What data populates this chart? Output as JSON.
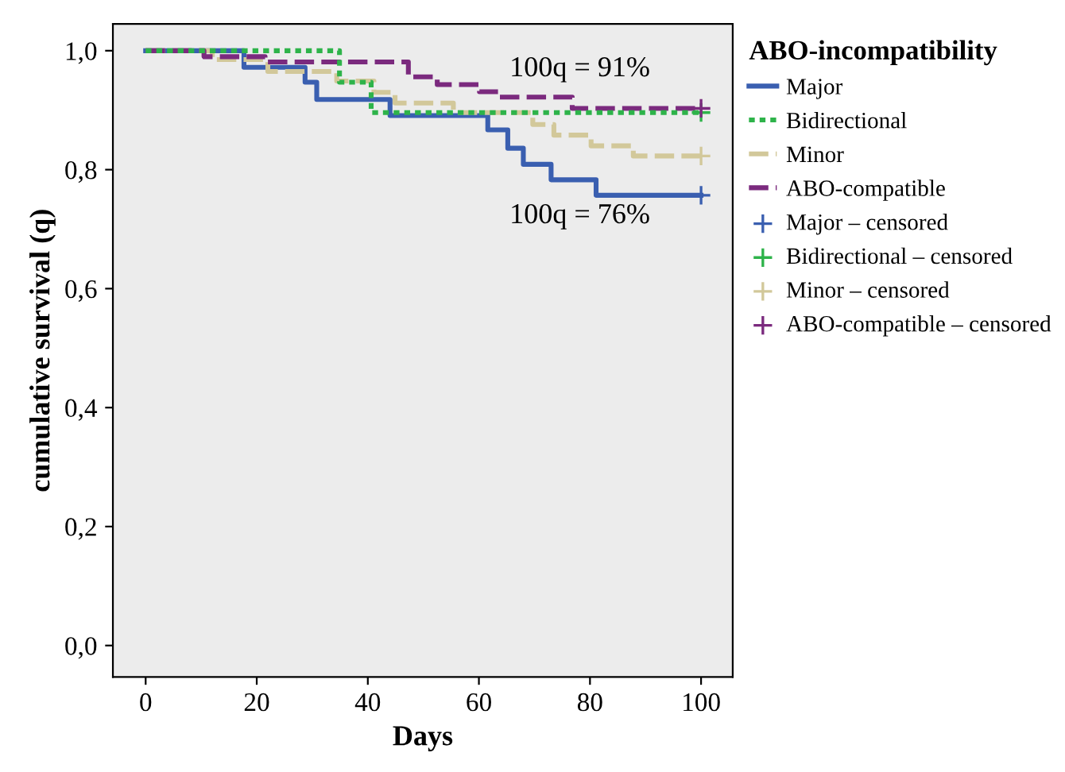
{
  "chart_data": {
    "type": "step",
    "xlabel": "Days",
    "ylabel": "cumulative survival (q)",
    "legend_title": "ABO-incompatibility",
    "xlim": [
      -5.9,
      105.7
    ],
    "ylim": [
      -0.053,
      1.045
    ],
    "xticks": [
      0,
      20,
      40,
      60,
      80,
      100
    ],
    "yticks": [
      {
        "value": 0,
        "label": "0,0"
      },
      {
        "value": 0.2,
        "label": "0,2"
      },
      {
        "value": 0.4,
        "label": "0,4"
      },
      {
        "value": 0.6,
        "label": "0,6"
      },
      {
        "value": 0.8,
        "label": "0,8"
      },
      {
        "value": 1.0,
        "label": "1,0"
      }
    ],
    "grid": false,
    "legend": "right",
    "annotations": [
      "100q = 91%",
      "100q = 76%"
    ],
    "series": [
      {
        "name": "Major",
        "color": "#3a5fb0",
        "line_style": "solid",
        "x": [
          0,
          17.7,
          28.7,
          30.8,
          44.0,
          61.6,
          65.2,
          68.0,
          73.0,
          81.1,
          100
        ],
        "values": [
          1.0,
          0.972,
          0.947,
          0.918,
          0.891,
          0.867,
          0.836,
          0.809,
          0.783,
          0.757,
          0.757
        ]
      },
      {
        "name": "Bidirectional",
        "color": "#2eb34a",
        "line_style": "dotted",
        "x": [
          0,
          34.9,
          40.6,
          100
        ],
        "values": [
          1.0,
          0.947,
          0.896,
          0.896
        ]
      },
      {
        "name": "Minor",
        "color": "#d2c89a",
        "line_style": "dashed",
        "x": [
          0,
          12.0,
          22.0,
          34.4,
          41.1,
          44.9,
          55.4,
          69.7,
          73.5,
          80.2,
          87.8,
          100
        ],
        "values": [
          1.0,
          0.985,
          0.965,
          0.949,
          0.93,
          0.912,
          0.896,
          0.876,
          0.858,
          0.84,
          0.823,
          0.823
        ]
      },
      {
        "name": "ABO-compatible",
        "color": "#7b2a7e",
        "line_style": "dashed",
        "x": [
          0,
          10.5,
          21.5,
          47.3,
          52.5,
          60.1,
          63.5,
          76.8,
          100
        ],
        "values": [
          1.0,
          0.99,
          0.981,
          0.956,
          0.943,
          0.931,
          0.922,
          0.903,
          0.903
        ]
      },
      {
        "name": "Major – censored",
        "type": "scatter",
        "marker": "cross",
        "color": "#3a5fb0",
        "x": [
          100
        ],
        "values": [
          0.757
        ]
      },
      {
        "name": "Bidirectional – censored",
        "type": "scatter",
        "marker": "cross",
        "color": "#2eb34a",
        "x": [
          100
        ],
        "values": [
          0.896
        ]
      },
      {
        "name": "Minor – censored",
        "type": "scatter",
        "marker": "cross",
        "color": "#d2c89a",
        "x": [
          100
        ],
        "values": [
          0.823
        ]
      },
      {
        "name": "ABO-compatible – censored",
        "type": "scatter",
        "marker": "cross",
        "color": "#7b2a7e",
        "x": [
          100
        ],
        "values": [
          0.903
        ]
      }
    ]
  }
}
